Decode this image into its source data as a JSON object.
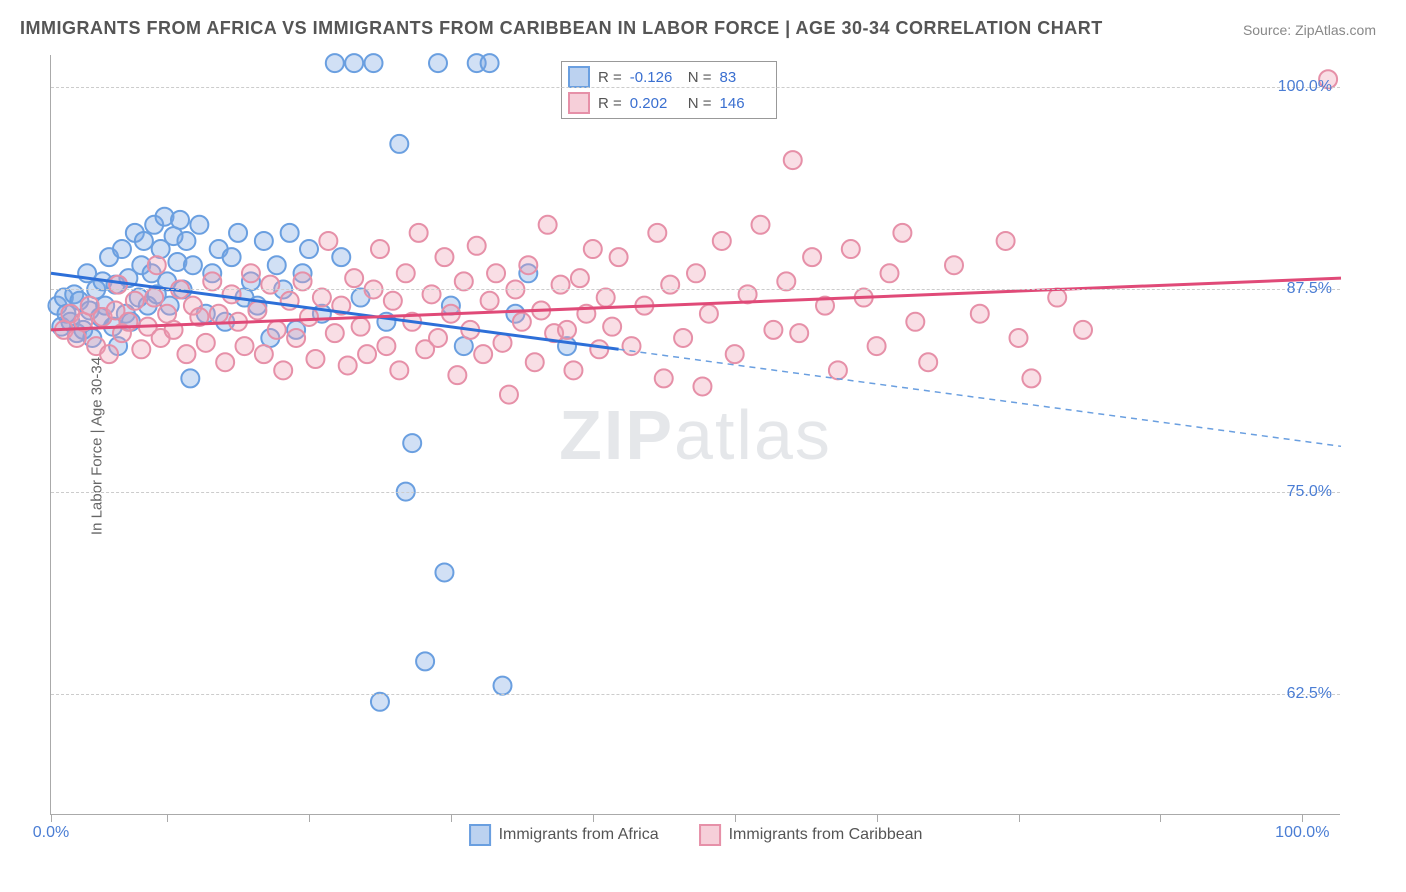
{
  "title": "IMMIGRANTS FROM AFRICA VS IMMIGRANTS FROM CARIBBEAN IN LABOR FORCE | AGE 30-34 CORRELATION CHART",
  "source": "Source: ZipAtlas.com",
  "y_axis_label": "In Labor Force | Age 30-34",
  "watermark": "ZIPatlas",
  "chart": {
    "type": "scatter",
    "xlim": [
      0,
      100
    ],
    "ylim": [
      55,
      102
    ],
    "x_tick_positions": [
      0,
      9,
      20,
      31,
      42,
      53,
      64,
      75,
      86,
      97
    ],
    "x_tick_labels": {
      "0": "0.0%",
      "97": "100.0%"
    },
    "y_ticks": [
      62.5,
      75.0,
      87.5,
      100.0
    ],
    "y_tick_format": "%",
    "background_color": "#ffffff",
    "grid_color": "#cccccc",
    "marker_radius": 9,
    "marker_stroke_width": 2,
    "series": [
      {
        "name": "Immigrants from Africa",
        "color_fill": "rgba(122,165,226,0.35)",
        "color_stroke": "#6a9fe0",
        "R": "-0.126",
        "N": "83",
        "trend": {
          "x1": 0,
          "y1": 88.5,
          "x2": 44,
          "y2": 83.8,
          "stroke": "#2d6fd8",
          "width": 3,
          "dash": "none"
        },
        "trend_ext": {
          "x1": 44,
          "y1": 83.8,
          "x2": 100,
          "y2": 77.8,
          "stroke": "#6a9fe0",
          "width": 1.5,
          "dash": "6 5"
        },
        "points": [
          [
            0.5,
            86.5
          ],
          [
            0.8,
            85.2
          ],
          [
            1.0,
            87.0
          ],
          [
            1.2,
            86.0
          ],
          [
            1.5,
            85.5
          ],
          [
            1.8,
            87.2
          ],
          [
            2.0,
            84.8
          ],
          [
            2.2,
            86.8
          ],
          [
            2.5,
            85.0
          ],
          [
            2.8,
            88.5
          ],
          [
            3.0,
            86.2
          ],
          [
            3.2,
            84.5
          ],
          [
            3.5,
            87.5
          ],
          [
            3.8,
            85.8
          ],
          [
            4.0,
            88.0
          ],
          [
            4.2,
            86.5
          ],
          [
            4.5,
            89.5
          ],
          [
            4.8,
            85.2
          ],
          [
            5.0,
            87.8
          ],
          [
            5.2,
            84.0
          ],
          [
            5.5,
            90.0
          ],
          [
            5.8,
            86.0
          ],
          [
            6.0,
            88.2
          ],
          [
            6.2,
            85.5
          ],
          [
            6.5,
            91.0
          ],
          [
            6.8,
            87.0
          ],
          [
            7.0,
            89.0
          ],
          [
            7.2,
            90.5
          ],
          [
            7.5,
            86.5
          ],
          [
            7.8,
            88.5
          ],
          [
            8.0,
            91.5
          ],
          [
            8.2,
            87.2
          ],
          [
            8.5,
            90.0
          ],
          [
            8.8,
            92.0
          ],
          [
            9.0,
            88.0
          ],
          [
            9.2,
            86.5
          ],
          [
            9.5,
            90.8
          ],
          [
            9.8,
            89.2
          ],
          [
            10.0,
            91.8
          ],
          [
            10.2,
            87.5
          ],
          [
            10.5,
            90.5
          ],
          [
            10.8,
            82.0
          ],
          [
            11.0,
            89.0
          ],
          [
            11.5,
            91.5
          ],
          [
            12.0,
            86.0
          ],
          [
            12.5,
            88.5
          ],
          [
            13.0,
            90.0
          ],
          [
            13.5,
            85.5
          ],
          [
            14.0,
            89.5
          ],
          [
            14.5,
            91.0
          ],
          [
            15.0,
            87.0
          ],
          [
            15.5,
            88.0
          ],
          [
            16.0,
            86.5
          ],
          [
            16.5,
            90.5
          ],
          [
            17.0,
            84.5
          ],
          [
            17.5,
            89.0
          ],
          [
            18.0,
            87.5
          ],
          [
            18.5,
            91.0
          ],
          [
            19.0,
            85.0
          ],
          [
            19.5,
            88.5
          ],
          [
            20.0,
            90.0
          ],
          [
            21.0,
            86.0
          ],
          [
            22.0,
            101.5
          ],
          [
            22.5,
            89.5
          ],
          [
            23.5,
            101.5
          ],
          [
            24.0,
            87.0
          ],
          [
            25.0,
            101.5
          ],
          [
            25.5,
            62.0
          ],
          [
            26.0,
            85.5
          ],
          [
            27.0,
            96.5
          ],
          [
            27.5,
            75.0
          ],
          [
            28.0,
            78.0
          ],
          [
            29.0,
            64.5
          ],
          [
            30.0,
            101.5
          ],
          [
            30.5,
            70.0
          ],
          [
            31.0,
            86.5
          ],
          [
            32.0,
            84.0
          ],
          [
            33.0,
            101.5
          ],
          [
            34.0,
            101.5
          ],
          [
            35.0,
            63.0
          ],
          [
            36.0,
            86.0
          ],
          [
            37.0,
            88.5
          ],
          [
            40.0,
            84.0
          ]
        ]
      },
      {
        "name": "Immigrants from Caribbean",
        "color_fill": "rgba(238,160,180,0.35)",
        "color_stroke": "#e690a8",
        "R": "0.202",
        "N": "146",
        "trend": {
          "x1": 0,
          "y1": 85.0,
          "x2": 100,
          "y2": 88.2,
          "stroke": "#e04a78",
          "width": 3,
          "dash": "none"
        },
        "points": [
          [
            1.0,
            85.0
          ],
          [
            1.5,
            86.0
          ],
          [
            2.0,
            84.5
          ],
          [
            2.5,
            85.5
          ],
          [
            3.0,
            86.5
          ],
          [
            3.5,
            84.0
          ],
          [
            4.0,
            85.8
          ],
          [
            4.5,
            83.5
          ],
          [
            5.0,
            86.2
          ],
          [
            5.2,
            87.8
          ],
          [
            5.5,
            84.8
          ],
          [
            6.0,
            85.5
          ],
          [
            6.5,
            86.8
          ],
          [
            7.0,
            83.8
          ],
          [
            7.5,
            85.2
          ],
          [
            8.0,
            87.0
          ],
          [
            8.2,
            89.0
          ],
          [
            8.5,
            84.5
          ],
          [
            9.0,
            86.0
          ],
          [
            9.5,
            85.0
          ],
          [
            10.0,
            87.5
          ],
          [
            10.5,
            83.5
          ],
          [
            11.0,
            86.5
          ],
          [
            11.5,
            85.8
          ],
          [
            12.0,
            84.2
          ],
          [
            12.5,
            88.0
          ],
          [
            13.0,
            86.0
          ],
          [
            13.5,
            83.0
          ],
          [
            14.0,
            87.2
          ],
          [
            14.5,
            85.5
          ],
          [
            15.0,
            84.0
          ],
          [
            15.5,
            88.5
          ],
          [
            16.0,
            86.2
          ],
          [
            16.5,
            83.5
          ],
          [
            17.0,
            87.8
          ],
          [
            17.5,
            85.0
          ],
          [
            18.0,
            82.5
          ],
          [
            18.5,
            86.8
          ],
          [
            19.0,
            84.5
          ],
          [
            19.5,
            88.0
          ],
          [
            20.0,
            85.8
          ],
          [
            20.5,
            83.2
          ],
          [
            21.0,
            87.0
          ],
          [
            21.5,
            90.5
          ],
          [
            22.0,
            84.8
          ],
          [
            22.5,
            86.5
          ],
          [
            23.0,
            82.8
          ],
          [
            23.5,
            88.2
          ],
          [
            24.0,
            85.2
          ],
          [
            24.5,
            83.5
          ],
          [
            25.0,
            87.5
          ],
          [
            25.5,
            90.0
          ],
          [
            26.0,
            84.0
          ],
          [
            26.5,
            86.8
          ],
          [
            27.0,
            82.5
          ],
          [
            27.5,
            88.5
          ],
          [
            28.0,
            85.5
          ],
          [
            28.5,
            91.0
          ],
          [
            29.0,
            83.8
          ],
          [
            29.5,
            87.2
          ],
          [
            30.0,
            84.5
          ],
          [
            30.5,
            89.5
          ],
          [
            31.0,
            86.0
          ],
          [
            31.5,
            82.2
          ],
          [
            32.0,
            88.0
          ],
          [
            32.5,
            85.0
          ],
          [
            33.0,
            90.2
          ],
          [
            33.5,
            83.5
          ],
          [
            34.0,
            86.8
          ],
          [
            34.5,
            88.5
          ],
          [
            35.0,
            84.2
          ],
          [
            35.5,
            81.0
          ],
          [
            36.0,
            87.5
          ],
          [
            36.5,
            85.5
          ],
          [
            37.0,
            89.0
          ],
          [
            37.5,
            83.0
          ],
          [
            38.0,
            86.2
          ],
          [
            38.5,
            91.5
          ],
          [
            39.0,
            84.8
          ],
          [
            39.5,
            87.8
          ],
          [
            40.0,
            85.0
          ],
          [
            40.5,
            82.5
          ],
          [
            41.0,
            88.2
          ],
          [
            41.5,
            86.0
          ],
          [
            42.0,
            90.0
          ],
          [
            42.5,
            83.8
          ],
          [
            43.0,
            87.0
          ],
          [
            43.5,
            85.2
          ],
          [
            44.0,
            89.5
          ],
          [
            45.0,
            84.0
          ],
          [
            46.0,
            86.5
          ],
          [
            47.0,
            91.0
          ],
          [
            47.5,
            82.0
          ],
          [
            48.0,
            87.8
          ],
          [
            49.0,
            84.5
          ],
          [
            50.0,
            88.5
          ],
          [
            50.5,
            81.5
          ],
          [
            51.0,
            86.0
          ],
          [
            52.0,
            90.5
          ],
          [
            53.0,
            83.5
          ],
          [
            54.0,
            87.2
          ],
          [
            55.0,
            91.5
          ],
          [
            56.0,
            85.0
          ],
          [
            57.0,
            88.0
          ],
          [
            57.5,
            95.5
          ],
          [
            58.0,
            84.8
          ],
          [
            59.0,
            89.5
          ],
          [
            60.0,
            86.5
          ],
          [
            61.0,
            82.5
          ],
          [
            62.0,
            90.0
          ],
          [
            63.0,
            87.0
          ],
          [
            64.0,
            84.0
          ],
          [
            65.0,
            88.5
          ],
          [
            66.0,
            91.0
          ],
          [
            67.0,
            85.5
          ],
          [
            68.0,
            83.0
          ],
          [
            70.0,
            89.0
          ],
          [
            72.0,
            86.0
          ],
          [
            74.0,
            90.5
          ],
          [
            75.0,
            84.5
          ],
          [
            76.0,
            82.0
          ],
          [
            78.0,
            87.0
          ],
          [
            80.0,
            85.0
          ],
          [
            99.0,
            100.5
          ]
        ]
      }
    ]
  },
  "legend_bottom": [
    {
      "label": "Immigrants from Africa",
      "swatch": "blue"
    },
    {
      "label": "Immigrants from Caribbean",
      "swatch": "pink"
    }
  ]
}
